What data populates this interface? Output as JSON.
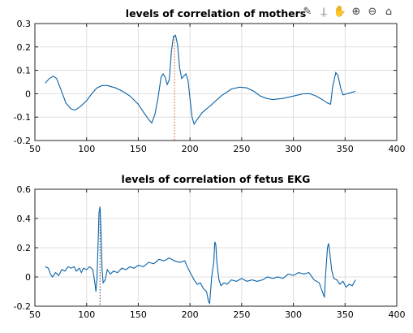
{
  "toolbar": {
    "icons": [
      "brush-icon",
      "data-tip-icon",
      "pan-hand-icon",
      "zoom-in-icon",
      "zoom-out-icon",
      "home-icon"
    ]
  },
  "chart_data": [
    {
      "type": "line",
      "title": "levels of correlation of mothers",
      "xlim": [
        50,
        400
      ],
      "ylim": [
        -0.2,
        0.3
      ],
      "xticks": [
        "50",
        "100",
        "150",
        "200",
        "250",
        "300",
        "350",
        "400"
      ],
      "yticks": [
        "-0.2",
        "-0.1",
        "0",
        "0.1",
        "0.2",
        "0.3"
      ],
      "grid": true,
      "marker_x": 185,
      "series": [
        {
          "color": "#0b63a7",
          "points": [
            [
              60,
              0.045
            ],
            [
              64,
              0.065
            ],
            [
              68,
              0.075
            ],
            [
              71,
              0.065
            ],
            [
              75,
              0.02
            ],
            [
              80,
              -0.04
            ],
            [
              85,
              -0.065
            ],
            [
              89,
              -0.07
            ],
            [
              94,
              -0.055
            ],
            [
              100,
              -0.03
            ],
            [
              105,
              0.0
            ],
            [
              110,
              0.025
            ],
            [
              115,
              0.035
            ],
            [
              120,
              0.035
            ],
            [
              128,
              0.025
            ],
            [
              135,
              0.01
            ],
            [
              142,
              -0.01
            ],
            [
              150,
              -0.045
            ],
            [
              156,
              -0.085
            ],
            [
              160,
              -0.11
            ],
            [
              163,
              -0.125
            ],
            [
              166,
              -0.09
            ],
            [
              169,
              -0.02
            ],
            [
              172,
              0.07
            ],
            [
              174,
              0.085
            ],
            [
              176,
              0.07
            ],
            [
              178,
              0.04
            ],
            [
              180,
              0.06
            ],
            [
              182,
              0.18
            ],
            [
              184,
              0.245
            ],
            [
              186,
              0.25
            ],
            [
              188,
              0.21
            ],
            [
              190,
              0.11
            ],
            [
              192,
              0.065
            ],
            [
              194,
              0.075
            ],
            [
              196,
              0.085
            ],
            [
              198,
              0.06
            ],
            [
              200,
              -0.02
            ],
            [
              202,
              -0.1
            ],
            [
              204,
              -0.13
            ],
            [
              207,
              -0.11
            ],
            [
              212,
              -0.08
            ],
            [
              220,
              -0.05
            ],
            [
              230,
              -0.01
            ],
            [
              240,
              0.02
            ],
            [
              248,
              0.028
            ],
            [
              255,
              0.025
            ],
            [
              262,
              0.01
            ],
            [
              268,
              -0.01
            ],
            [
              274,
              -0.02
            ],
            [
              280,
              -0.025
            ],
            [
              290,
              -0.02
            ],
            [
              300,
              -0.01
            ],
            [
              305,
              -0.005
            ],
            [
              310,
              0.0
            ],
            [
              316,
              0.0
            ],
            [
              322,
              -0.01
            ],
            [
              328,
              -0.025
            ],
            [
              333,
              -0.04
            ],
            [
              336,
              -0.045
            ],
            [
              338,
              0.03
            ],
            [
              341,
              0.09
            ],
            [
              343,
              0.08
            ],
            [
              346,
              0.02
            ],
            [
              348,
              -0.005
            ],
            [
              352,
              0.0
            ],
            [
              356,
              0.005
            ],
            [
              360,
              0.01
            ]
          ]
        }
      ]
    },
    {
      "type": "line",
      "title": "levels of correlation of fetus EKG",
      "xlim": [
        50,
        400
      ],
      "ylim": [
        -0.2,
        0.6
      ],
      "xticks": [
        "50",
        "100",
        "150",
        "200",
        "250",
        "300",
        "350",
        "400"
      ],
      "yticks": [
        "-0.2",
        "0",
        "0.2",
        "0.4",
        "0.6"
      ],
      "grid": true,
      "marker_x": 113,
      "series": [
        {
          "color": "#0b63a7",
          "points": [
            [
              60,
              0.07
            ],
            [
              63,
              0.06
            ],
            [
              65,
              0.02
            ],
            [
              67,
              0.0
            ],
            [
              70,
              0.03
            ],
            [
              73,
              0.01
            ],
            [
              76,
              0.05
            ],
            [
              79,
              0.04
            ],
            [
              82,
              0.07
            ],
            [
              85,
              0.06
            ],
            [
              88,
              0.07
            ],
            [
              90,
              0.04
            ],
            [
              93,
              0.06
            ],
            [
              95,
              0.03
            ],
            [
              97,
              0.06
            ],
            [
              100,
              0.05
            ],
            [
              103,
              0.07
            ],
            [
              106,
              0.05
            ],
            [
              108,
              -0.04
            ],
            [
              109,
              -0.1
            ],
            [
              110,
              -0.02
            ],
            [
              111,
              0.2
            ],
            [
              112,
              0.44
            ],
            [
              113,
              0.48
            ],
            [
              114,
              0.3
            ],
            [
              115,
              0.05
            ],
            [
              116,
              -0.04
            ],
            [
              118,
              -0.02
            ],
            [
              120,
              0.05
            ],
            [
              123,
              0.02
            ],
            [
              126,
              0.04
            ],
            [
              130,
              0.03
            ],
            [
              134,
              0.06
            ],
            [
              138,
              0.05
            ],
            [
              142,
              0.07
            ],
            [
              146,
              0.06
            ],
            [
              150,
              0.08
            ],
            [
              155,
              0.07
            ],
            [
              160,
              0.1
            ],
            [
              165,
              0.09
            ],
            [
              170,
              0.12
            ],
            [
              175,
              0.11
            ],
            [
              180,
              0.13
            ],
            [
              185,
              0.11
            ],
            [
              190,
              0.1
            ],
            [
              195,
              0.11
            ],
            [
              198,
              0.06
            ],
            [
              201,
              0.02
            ],
            [
              204,
              -0.02
            ],
            [
              207,
              -0.05
            ],
            [
              210,
              -0.04
            ],
            [
              213,
              -0.08
            ],
            [
              216,
              -0.1
            ],
            [
              218,
              -0.17
            ],
            [
              219,
              -0.18
            ],
            [
              221,
              0.0
            ],
            [
              223,
              0.1
            ],
            [
              224,
              0.24
            ],
            [
              225,
              0.22
            ],
            [
              226,
              0.1
            ],
            [
              228,
              -0.02
            ],
            [
              230,
              -0.06
            ],
            [
              233,
              -0.04
            ],
            [
              236,
              -0.05
            ],
            [
              240,
              -0.02
            ],
            [
              245,
              -0.03
            ],
            [
              250,
              -0.01
            ],
            [
              255,
              -0.03
            ],
            [
              260,
              -0.02
            ],
            [
              265,
              -0.03
            ],
            [
              270,
              -0.02
            ],
            [
              275,
              0.0
            ],
            [
              280,
              -0.01
            ],
            [
              285,
              0.0
            ],
            [
              290,
              -0.01
            ],
            [
              295,
              0.02
            ],
            [
              300,
              0.01
            ],
            [
              305,
              0.03
            ],
            [
              310,
              0.02
            ],
            [
              315,
              0.03
            ],
            [
              320,
              -0.02
            ],
            [
              325,
              -0.04
            ],
            [
              328,
              -0.1
            ],
            [
              330,
              -0.14
            ],
            [
              331,
              0.0
            ],
            [
              333,
              0.2
            ],
            [
              334,
              0.23
            ],
            [
              335,
              0.18
            ],
            [
              337,
              0.05
            ],
            [
              339,
              -0.01
            ],
            [
              342,
              -0.02
            ],
            [
              345,
              -0.05
            ],
            [
              348,
              -0.03
            ],
            [
              351,
              -0.07
            ],
            [
              354,
              -0.05
            ],
            [
              357,
              -0.06
            ],
            [
              360,
              -0.02
            ]
          ]
        }
      ]
    }
  ]
}
